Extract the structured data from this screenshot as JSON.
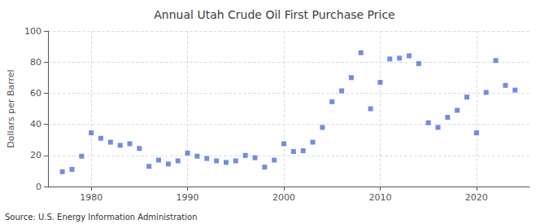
{
  "chart_data": {
    "type": "scatter",
    "title": "Annual Utah Crude Oil First Purchase Price",
    "ylabel": "Dollars per Barrel",
    "annotation": "Source: U.S. Energy Information Administration",
    "x": [
      1977,
      1978,
      1979,
      1980,
      1981,
      1982,
      1983,
      1984,
      1985,
      1986,
      1987,
      1988,
      1989,
      1990,
      1991,
      1992,
      1993,
      1994,
      1995,
      1996,
      1997,
      1998,
      1999,
      2000,
      2001,
      2002,
      2003,
      2004,
      2005,
      2006,
      2007,
      2008,
      2009,
      2010,
      2011,
      2012,
      2013,
      2014,
      2015,
      2016,
      2017,
      2018,
      2019,
      2020,
      2021,
      2022,
      2023,
      2024
    ],
    "values": [
      9.5,
      11.0,
      19.5,
      34.5,
      31.0,
      28.5,
      26.5,
      27.5,
      24.5,
      13.0,
      17.0,
      14.5,
      16.5,
      21.5,
      19.5,
      18.0,
      16.5,
      15.5,
      16.5,
      20.0,
      18.5,
      12.5,
      17.0,
      27.5,
      22.5,
      23.0,
      28.5,
      38.0,
      54.5,
      61.5,
      70.0,
      86.0,
      50.0,
      67.0,
      82.0,
      82.5,
      84.0,
      79.0,
      41.0,
      38.0,
      44.5,
      49.0,
      57.5,
      34.5,
      60.5,
      81.0,
      65.0,
      62.0
    ],
    "xlim": [
      1975.5,
      2025.5
    ],
    "xticks": [
      1980,
      1990,
      2000,
      2010,
      2020
    ],
    "ylim": [
      0,
      100
    ],
    "yticks": [
      0,
      20,
      40,
      60,
      80,
      100
    ],
    "grid": true,
    "marker": "square"
  }
}
